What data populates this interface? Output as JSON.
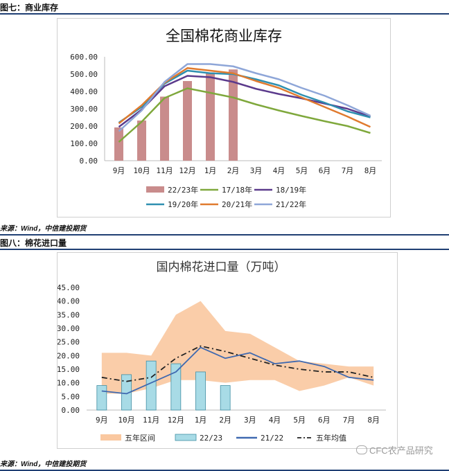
{
  "page": {
    "fig7_header": "图七：商业库存",
    "fig8_header": "图八：棉花进口量",
    "source_note": "来源：Wind，中信建投期货",
    "watermark": "CFC农产品研究"
  },
  "chart_data": [
    {
      "type": "bar",
      "title": "全国棉花商业库存",
      "categories": [
        "9月",
        "10月",
        "11月",
        "12月",
        "1月",
        "2月",
        "3月",
        "4月",
        "5月",
        "6月",
        "7月",
        "8月"
      ],
      "ylim": [
        0,
        600
      ],
      "yticks": [
        "0.00",
        "100.00",
        "200.00",
        "300.00",
        "400.00",
        "500.00",
        "600.00"
      ],
      "series": [
        {
          "name": "22/23年",
          "kind": "bar",
          "color": "#c98c8c",
          "values": [
            192,
            232,
            370,
            460,
            510,
            527,
            null,
            null,
            null,
            null,
            null,
            null
          ]
        },
        {
          "name": "17/18年",
          "kind": "line",
          "color": "#7fa83c",
          "values": [
            108,
            225,
            362,
            418,
            392,
            365,
            325,
            290,
            258,
            228,
            200,
            160
          ]
        },
        {
          "name": "18/19年",
          "kind": "line",
          "color": "#5b3a8c",
          "values": [
            195,
            295,
            430,
            490,
            482,
            455,
            415,
            385,
            360,
            330,
            300,
            255
          ]
        },
        {
          "name": "19/20年",
          "kind": "line",
          "color": "#2e8fb0",
          "values": [
            220,
            310,
            445,
            520,
            505,
            500,
            470,
            435,
            380,
            335,
            285,
            250
          ]
        },
        {
          "name": "20/21年",
          "kind": "line",
          "color": "#e07a2e",
          "values": [
            215,
            320,
            450,
            535,
            520,
            505,
            460,
            420,
            365,
            310,
            255,
            195
          ]
        },
        {
          "name": "21/22年",
          "kind": "line",
          "color": "#8ea6d8",
          "values": [
            170,
            290,
            455,
            558,
            558,
            545,
            505,
            470,
            420,
            375,
            320,
            260
          ]
        }
      ]
    },
    {
      "type": "bar",
      "title": "国内棉花进口量（万吨）",
      "categories": [
        "9月",
        "10月",
        "11月",
        "12月",
        "1月",
        "2月",
        "3月",
        "4月",
        "5月",
        "6月",
        "7月",
        "8月"
      ],
      "ylim": [
        0,
        45
      ],
      "yticks": [
        "0.00",
        "5.00",
        "10.00",
        "15.00",
        "20.00",
        "25.00",
        "30.00",
        "35.00",
        "40.00",
        "45.00"
      ],
      "band": {
        "name": "五年区间",
        "color": "#fac8a0",
        "upper": [
          21,
          21,
          20,
          35,
          40,
          29,
          28,
          23,
          18,
          17,
          16,
          16
        ],
        "lower": [
          6,
          6,
          8,
          11,
          11,
          10,
          11,
          11,
          7,
          9,
          12,
          9
        ]
      },
      "series": [
        {
          "name": "22/23",
          "kind": "bar",
          "color": "#a8dbe6",
          "values": [
            9,
            13,
            18,
            17,
            14,
            9,
            null,
            null,
            null,
            null,
            null,
            null
          ]
        },
        {
          "name": "21/22",
          "kind": "line",
          "color": "#3f69b0",
          "values": [
            7,
            6,
            10,
            14,
            23,
            19,
            21,
            17,
            18,
            16,
            12,
            11
          ]
        },
        {
          "name": "五年均值",
          "kind": "dashdot",
          "color": "#222222",
          "values": [
            12,
            10.5,
            12,
            19,
            23.5,
            21.5,
            19,
            16.5,
            15,
            14,
            14,
            12
          ]
        }
      ]
    }
  ]
}
